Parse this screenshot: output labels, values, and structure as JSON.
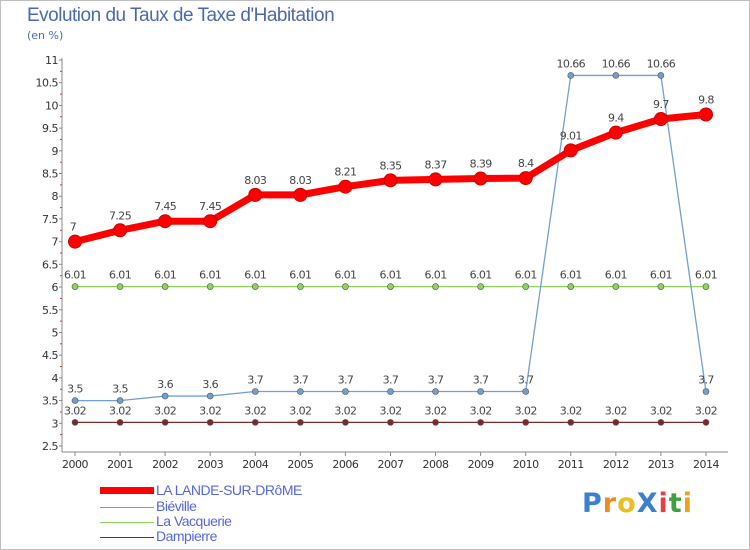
{
  "header": {
    "title": "Evolution du Taux de Taxe d'Habitation",
    "unit_note": "(en %)"
  },
  "chart_data": {
    "type": "line",
    "x": [
      "2000",
      "2001",
      "2002",
      "2003",
      "2004",
      "2005",
      "2006",
      "2007",
      "2008",
      "2009",
      "2010",
      "2011",
      "2012",
      "2013",
      "2014"
    ],
    "ylim": [
      2.5,
      11
    ],
    "yticks": [
      "2.5",
      "3",
      "3.5",
      "4",
      "4.5",
      "5",
      "5.5",
      "6",
      "6.5",
      "7",
      "7.5",
      "8",
      "8.5",
      "9",
      "9.5",
      "10",
      "10.5",
      "11"
    ],
    "grid": false,
    "legend_position": "bottom-left",
    "series": [
      {
        "name": "LA LANDE-SUR-DRôME",
        "color": "#ff0000",
        "values": [
          7,
          7.25,
          7.45,
          7.45,
          8.03,
          8.03,
          8.21,
          8.35,
          8.37,
          8.39,
          8.4,
          9.01,
          9.4,
          9.7,
          9.8
        ],
        "labels": [
          "7",
          "7.25",
          "7.45",
          "7.45",
          "8.03",
          "8.03",
          "8.21",
          "8.35",
          "8.37",
          "8.39",
          "8.4",
          "9.01",
          "9.4",
          "9.7",
          "9.8"
        ]
      },
      {
        "name": "Biéville",
        "color": "#6fa0cf",
        "values": [
          3.5,
          3.5,
          3.6,
          3.6,
          3.7,
          3.7,
          3.7,
          3.7,
          3.7,
          3.7,
          3.7,
          10.66,
          10.66,
          10.66,
          3.7
        ],
        "labels": [
          "3.5",
          "3.5",
          "3.6",
          "3.6",
          "3.7",
          "3.7",
          "3.7",
          "3.7",
          "3.7",
          "3.7",
          "3.7",
          "10.66",
          "10.66",
          "10.66",
          "3.7"
        ]
      },
      {
        "name": "La Vacquerie",
        "color": "#8fd45a",
        "values": [
          6.01,
          6.01,
          6.01,
          6.01,
          6.01,
          6.01,
          6.01,
          6.01,
          6.01,
          6.01,
          6.01,
          6.01,
          6.01,
          6.01,
          6.01
        ],
        "labels": [
          "6.01",
          "6.01",
          "6.01",
          "6.01",
          "6.01",
          "6.01",
          "6.01",
          "6.01",
          "6.01",
          "6.01",
          "6.01",
          "6.01",
          "6.01",
          "6.01",
          "6.01"
        ]
      },
      {
        "name": "Dampierre",
        "color": "#7a2a2a",
        "values": [
          3.02,
          3.02,
          3.02,
          3.02,
          3.02,
          3.02,
          3.02,
          3.02,
          3.02,
          3.02,
          3.02,
          3.02,
          3.02,
          3.02,
          3.02
        ],
        "labels": [
          "3.02",
          "3.02",
          "3.02",
          "3.02",
          "3.02",
          "3.02",
          "3.02",
          "3.02",
          "3.02",
          "3.02",
          "3.02",
          "3.02",
          "3.02",
          "3.02",
          "3.02"
        ]
      }
    ]
  },
  "branding": {
    "logo_text": "ProXiti",
    "logo_colors": [
      "#3a7fd0",
      "#f08a24",
      "#e8c020",
      "#3a7fd0",
      "#e84040",
      "#40a040",
      "#f0a020"
    ]
  }
}
